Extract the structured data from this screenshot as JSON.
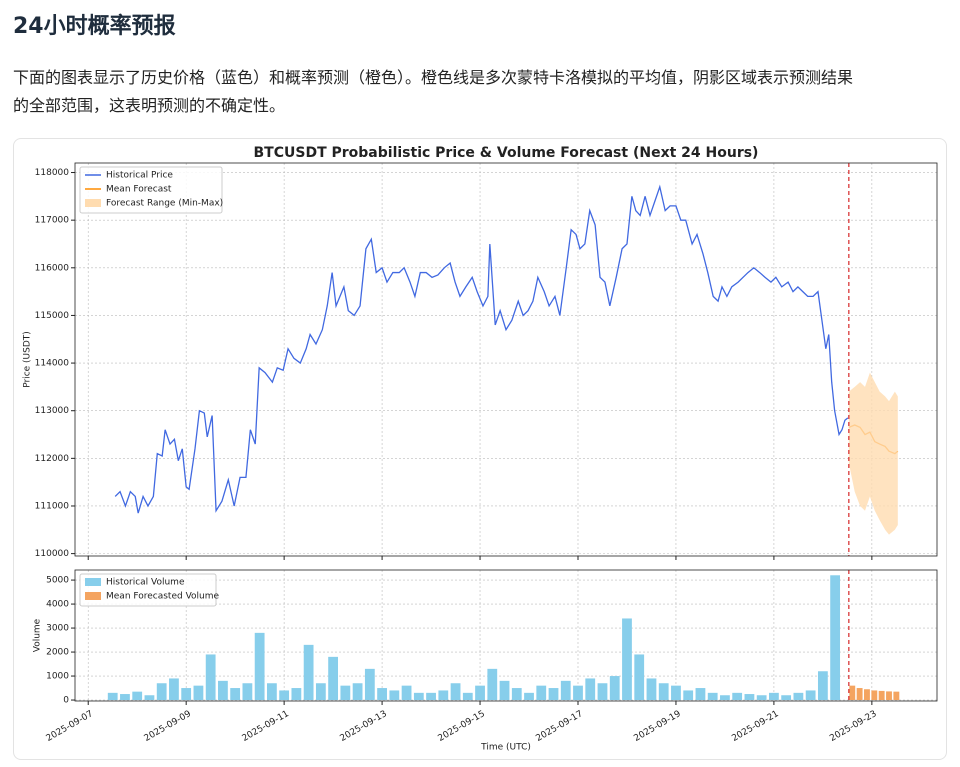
{
  "header": {
    "title": "24小时概率预报"
  },
  "paragraph": "下面的图表显示了历史价格（蓝色）和概率预测（橙色）。橙色线是多次蒙特卡洛模拟的平均值，阴影区域表示预测结果的全部范围，这表明预测的不确定性。",
  "chart_data": [
    {
      "type": "line",
      "title": "BTCUSDT Probabilistic Price & Volume Forecast (Next 24 Hours)",
      "y_label": "Price (USDT)",
      "xlim": [
        -0.27,
        17.33
      ],
      "xticks": [
        0,
        2,
        4,
        6,
        8,
        10,
        12,
        14,
        16
      ],
      "ylim": [
        109950,
        118200
      ],
      "yticks": [
        110000,
        111000,
        112000,
        113000,
        114000,
        115000,
        116000,
        117000,
        118000
      ],
      "grid": true,
      "legend": "upper left",
      "forecast_start": 15.53,
      "series": [
        {
          "name": "Historical Price",
          "color": "#4169e1",
          "x": [
            0.55,
            0.65,
            0.76,
            0.86,
            0.96,
            1.02,
            1.12,
            1.22,
            1.33,
            1.41,
            1.51,
            1.57,
            1.67,
            1.76,
            1.84,
            1.92,
            2.0,
            2.06,
            2.18,
            2.27,
            2.37,
            2.43,
            2.53,
            2.61,
            2.73,
            2.86,
            2.98,
            3.1,
            3.22,
            3.31,
            3.41,
            3.49,
            3.61,
            3.76,
            3.86,
            3.98,
            4.08,
            4.2,
            4.33,
            4.45,
            4.53,
            4.65,
            4.78,
            4.88,
            4.98,
            5.06,
            5.14,
            5.22,
            5.31,
            5.43,
            5.55,
            5.67,
            5.78,
            5.88,
            6.0,
            6.1,
            6.22,
            6.35,
            6.45,
            6.57,
            6.67,
            6.78,
            6.9,
            7.02,
            7.14,
            7.27,
            7.39,
            7.49,
            7.59,
            7.71,
            7.84,
            7.94,
            8.06,
            8.16,
            8.2,
            8.31,
            8.41,
            8.53,
            8.65,
            8.78,
            8.88,
            8.98,
            9.08,
            9.18,
            9.31,
            9.41,
            9.53,
            9.63,
            9.76,
            9.86,
            9.96,
            10.04,
            10.14,
            10.24,
            10.35,
            10.45,
            10.55,
            10.65,
            10.78,
            10.9,
            11.0,
            11.1,
            11.18,
            11.27,
            11.37,
            11.47,
            11.57,
            11.67,
            11.78,
            11.88,
            12.0,
            12.1,
            12.2,
            12.33,
            12.43,
            12.55,
            12.65,
            12.76,
            12.86,
            12.94,
            13.04,
            13.14,
            13.27,
            13.37,
            13.47,
            13.59,
            13.71,
            13.82,
            13.94,
            14.04,
            14.16,
            14.29,
            14.39,
            14.49,
            14.59,
            14.69,
            14.8,
            14.9,
            14.98,
            15.06,
            15.12,
            15.18,
            15.24,
            15.33,
            15.39,
            15.45,
            15.51
          ],
          "values": [
            111200,
            111300,
            111000,
            111300,
            111200,
            110850,
            111200,
            111000,
            111200,
            112100,
            112050,
            112600,
            112300,
            112400,
            111950,
            112200,
            111400,
            111350,
            112200,
            113000,
            112950,
            112450,
            112900,
            110900,
            111100,
            111550,
            111000,
            111600,
            111600,
            112600,
            112300,
            113900,
            113800,
            113600,
            113900,
            113850,
            114300,
            114100,
            114000,
            114300,
            114600,
            114400,
            114700,
            115200,
            115900,
            115200,
            115400,
            115600,
            115100,
            115000,
            115200,
            116400,
            116600,
            115900,
            116000,
            115700,
            115900,
            115900,
            116000,
            115700,
            115400,
            115900,
            115900,
            115800,
            115850,
            116000,
            116100,
            115700,
            115400,
            115600,
            115800,
            115500,
            115200,
            115400,
            116500,
            114800,
            115100,
            114700,
            114900,
            115300,
            115000,
            115100,
            115300,
            115800,
            115500,
            115200,
            115400,
            115000,
            116000,
            116800,
            116700,
            116400,
            116500,
            117200,
            116900,
            115800,
            115700,
            115200,
            115800,
            116400,
            116500,
            117500,
            117200,
            117100,
            117500,
            117100,
            117400,
            117700,
            117200,
            117300,
            117300,
            117000,
            117000,
            116500,
            116700,
            116300,
            115900,
            115400,
            115300,
            115600,
            115400,
            115600,
            115700,
            115800,
            115900,
            116000,
            115900,
            115800,
            115700,
            115800,
            115600,
            115700,
            115500,
            115600,
            115500,
            115400,
            115400,
            115500,
            114900,
            114300,
            114600,
            113600,
            113000,
            112500,
            112600,
            112800,
            112850
          ]
        },
        {
          "name": "Mean Forecast",
          "color": "#ff8c00",
          "x": [
            15.53,
            15.65,
            15.76,
            15.86,
            15.96,
            16.06,
            16.16,
            16.27,
            16.35,
            16.47,
            16.53
          ],
          "values": [
            112650,
            112700,
            112650,
            112500,
            112550,
            112350,
            112300,
            112250,
            112150,
            112100,
            112150
          ]
        },
        {
          "name": "Forecast Range (Min-Max)",
          "color": "#ffdcb0",
          "x": [
            15.53,
            15.65,
            15.76,
            15.86,
            15.96,
            16.06,
            16.16,
            16.27,
            16.35,
            16.47,
            16.53
          ],
          "lower": [
            111900,
            111300,
            111000,
            110900,
            111200,
            110900,
            110700,
            110500,
            110400,
            110500,
            110600
          ],
          "upper": [
            113400,
            113500,
            113600,
            113500,
            113800,
            113600,
            113400,
            113300,
            113200,
            113400,
            113300
          ]
        }
      ]
    },
    {
      "type": "bar",
      "y_label": "Volume",
      "x_label": "Time (UTC)",
      "xlim": [
        -0.27,
        17.33
      ],
      "xticks": [
        {
          "value": 0,
          "label": "2025-09-07"
        },
        {
          "value": 2,
          "label": "2025-09-09"
        },
        {
          "value": 4,
          "label": "2025-09-11"
        },
        {
          "value": 6,
          "label": "2025-09-13"
        },
        {
          "value": 8,
          "label": "2025-09-15"
        },
        {
          "value": 10,
          "label": "2025-09-17"
        },
        {
          "value": 12,
          "label": "2025-09-19"
        },
        {
          "value": 14,
          "label": "2025-09-21"
        },
        {
          "value": 16,
          "label": "2025-09-23"
        }
      ],
      "ylim": [
        -40,
        5420
      ],
      "yticks": [
        0,
        1000,
        2000,
        3000,
        4000,
        5000
      ],
      "grid": true,
      "legend": "upper left",
      "forecast_start": 15.53,
      "series": [
        {
          "name": "Historical Volume",
          "color": "#87ceeb",
          "x": [
            0.5,
            0.75,
            1.0,
            1.25,
            1.5,
            1.75,
            2.0,
            2.25,
            2.5,
            2.75,
            3.0,
            3.25,
            3.5,
            3.75,
            4.0,
            4.25,
            4.5,
            4.75,
            5.0,
            5.25,
            5.5,
            5.75,
            6.0,
            6.25,
            6.5,
            6.75,
            7.0,
            7.25,
            7.5,
            7.75,
            8.0,
            8.25,
            8.5,
            8.75,
            9.0,
            9.25,
            9.5,
            9.75,
            10.0,
            10.25,
            10.5,
            10.75,
            11.0,
            11.25,
            11.5,
            11.75,
            12.0,
            12.25,
            12.5,
            12.75,
            13.0,
            13.25,
            13.5,
            13.75,
            14.0,
            14.25,
            14.5,
            14.75,
            15.0,
            15.25
          ],
          "values": [
            300,
            250,
            350,
            200,
            700,
            900,
            500,
            600,
            1900,
            800,
            500,
            700,
            2800,
            700,
            400,
            500,
            2300,
            700,
            1800,
            600,
            700,
            1300,
            500,
            400,
            600,
            300,
            300,
            400,
            700,
            300,
            600,
            1300,
            800,
            500,
            300,
            600,
            500,
            800,
            600,
            900,
            700,
            1000,
            3400,
            1900,
            900,
            700,
            600,
            400,
            500,
            300,
            200,
            300,
            250,
            200,
            300,
            200,
            300,
            400,
            1200,
            5200
          ]
        },
        {
          "name": "Mean Forecasted Volume",
          "color": "#f4a460",
          "x": [
            15.6,
            15.75,
            15.9,
            16.05,
            16.2,
            16.35,
            16.5
          ],
          "values": [
            600,
            500,
            450,
            400,
            380,
            360,
            350
          ]
        }
      ]
    }
  ]
}
